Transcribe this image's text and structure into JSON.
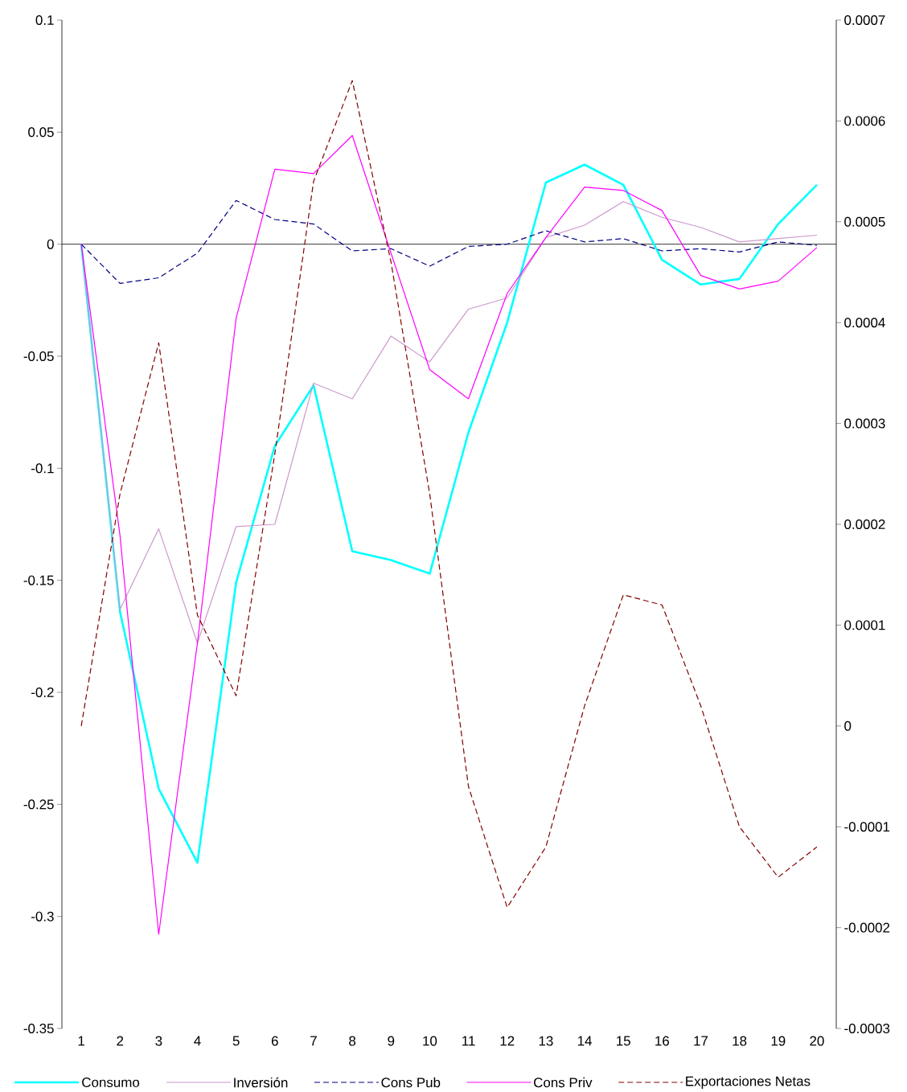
{
  "chart_data": {
    "type": "line",
    "categories": [
      "1",
      "2",
      "3",
      "4",
      "5",
      "6",
      "7",
      "8",
      "9",
      "10",
      "11",
      "12",
      "13",
      "14",
      "15",
      "16",
      "17",
      "18",
      "19",
      "20"
    ],
    "ylim": [
      -0.35,
      0.1
    ],
    "yticks": [
      -0.35,
      -0.3,
      -0.25,
      -0.2,
      -0.15,
      -0.1,
      -0.05,
      0,
      0.05,
      0.1
    ],
    "y2lim": [
      -0.0003,
      0.0007
    ],
    "y2ticks": [
      -0.0003,
      -0.0002,
      -0.0001,
      0,
      0.0001,
      0.0002,
      0.0003,
      0.0004,
      0.0005,
      0.0006,
      0.0007
    ],
    "legend": "bottom",
    "marker": "none",
    "ref_lines": [
      {
        "axis": "y",
        "value": 0,
        "color": "#000000"
      }
    ],
    "series": [
      {
        "name": "Consumo",
        "color": "#00ffff",
        "line_style": "solid",
        "values": [
          0,
          -0.164,
          -0.243,
          -0.276,
          -0.151,
          -0.09,
          -0.063,
          -0.137,
          -0.141,
          -0.147,
          -0.084,
          -0.035,
          0.0275,
          0.0355,
          0.0265,
          -0.007,
          -0.018,
          -0.0155,
          0.009,
          0.0265
        ]
      },
      {
        "name": "Inversión",
        "color": "#cc99cc",
        "line_style": "solid",
        "values": [
          0,
          -0.163,
          -0.127,
          -0.178,
          -0.126,
          -0.125,
          -0.062,
          -0.069,
          -0.041,
          -0.0525,
          -0.029,
          -0.024,
          0.003,
          0.0085,
          0.019,
          0.012,
          0.0075,
          0.001,
          0.0025,
          0.004
        ]
      },
      {
        "name": "Cons Pub",
        "color": "#000080",
        "line_style": "dashed",
        "values": [
          0,
          -0.0175,
          -0.015,
          -0.004,
          0.0195,
          0.011,
          0.009,
          -0.003,
          -0.002,
          -0.0098,
          -0.001,
          0,
          0.006,
          0.001,
          0.0025,
          -0.003,
          -0.002,
          -0.0035,
          0.001,
          -0.0005
        ]
      },
      {
        "name": "Cons Priv",
        "color": "#ff00ff",
        "line_style": "solid",
        "values": [
          0,
          -0.13,
          -0.308,
          -0.178,
          -0.033,
          0.0335,
          0.0315,
          0.0485,
          -0.004,
          -0.056,
          -0.069,
          -0.022,
          0.003,
          0.0255,
          0.024,
          0.015,
          -0.014,
          -0.02,
          -0.0165,
          -0.0015
        ]
      },
      {
        "name": "Exportaciones Netas",
        "color": "#800000",
        "line_style": "dashed",
        "axis": "y2",
        "values": [
          0,
          0.00023,
          0.00038,
          0.00011,
          3e-05,
          0.00027,
          0.00054,
          0.00064,
          0.00046,
          0.00023,
          -6e-05,
          -0.00018,
          -0.00012,
          2e-05,
          0.00013,
          0.00012,
          2e-05,
          -0.0001,
          -0.00015,
          -0.00012
        ]
      }
    ]
  }
}
